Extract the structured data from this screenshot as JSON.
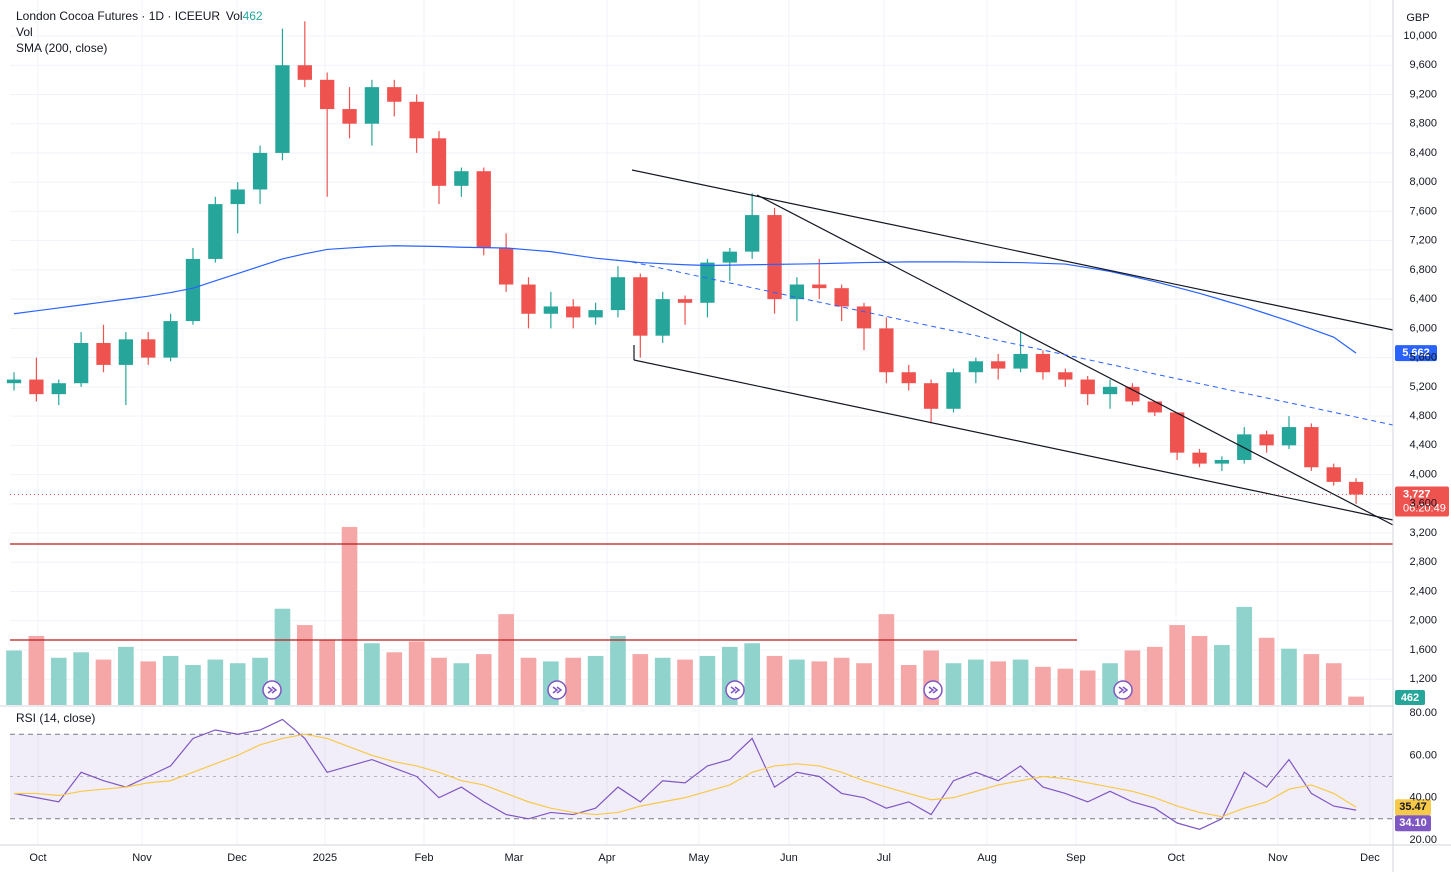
{
  "chart_data": [
    {
      "type": "candlestick",
      "title": "London Cocoa Futures · 1D · ICEEUR",
      "currency": "GBP",
      "x": [
        0,
        1,
        2,
        3,
        4,
        5,
        6,
        7,
        8,
        9,
        10,
        11,
        12,
        13,
        14,
        15,
        16,
        17,
        18,
        19,
        20,
        21,
        22,
        23,
        24,
        25,
        26,
        27,
        28,
        29,
        30,
        31,
        32,
        33,
        34,
        35,
        36,
        37,
        38,
        39,
        40,
        41,
        42,
        43,
        44,
        45,
        46,
        47,
        48,
        49,
        50,
        51,
        52,
        53,
        54,
        55,
        56,
        57,
        58,
        59,
        60
      ],
      "open": [
        5250,
        5300,
        5100,
        5250,
        5800,
        5500,
        5850,
        5600,
        6100,
        6950,
        7700,
        7900,
        8400,
        9600,
        9400,
        9000,
        8800,
        9300,
        9100,
        8600,
        7950,
        8150,
        7100,
        6600,
        6200,
        6300,
        6150,
        6250,
        6700,
        5900,
        6400,
        6350,
        6900,
        7050,
        7550,
        6400,
        6600,
        6550,
        6300,
        6000,
        5400,
        5250,
        4900,
        5400,
        5550,
        5450,
        5650,
        5400,
        5300,
        5100,
        5200,
        5000,
        4850,
        4300,
        4150,
        4200,
        4550,
        4400,
        4650,
        4100,
        3900
      ],
      "high": [
        5400,
        5600,
        5300,
        5950,
        6050,
        5950,
        5950,
        6200,
        7100,
        7800,
        8000,
        8500,
        10100,
        10200,
        9500,
        9300,
        9400,
        9400,
        9200,
        8700,
        8200,
        8200,
        7300,
        6700,
        6500,
        6400,
        6350,
        6850,
        6750,
        6500,
        6450,
        6950,
        7100,
        7850,
        7650,
        6700,
        6950,
        6600,
        6350,
        6150,
        5500,
        5300,
        5450,
        5600,
        5650,
        5950,
        5700,
        5450,
        5350,
        5300,
        5250,
        5000,
        4850,
        4350,
        4250,
        4650,
        4600,
        4800,
        4700,
        4150,
        3950
      ],
      "low": [
        5150,
        5000,
        4950,
        5200,
        5400,
        4950,
        5500,
        5550,
        6050,
        6900,
        7300,
        7700,
        8300,
        9300,
        7800,
        8600,
        8500,
        8900,
        8400,
        7700,
        7800,
        7000,
        6500,
        6000,
        6000,
        6000,
        6050,
        6150,
        5600,
        5800,
        6050,
        6150,
        6650,
        6950,
        6200,
        6100,
        6400,
        6100,
        5700,
        5250,
        5150,
        4700,
        4850,
        5250,
        5300,
        5400,
        5300,
        5200,
        4950,
        4900,
        4950,
        4800,
        4200,
        4100,
        4050,
        4150,
        4300,
        4350,
        4050,
        3850,
        3600
      ],
      "close": [
        5300,
        5100,
        5250,
        5800,
        5500,
        5850,
        5600,
        6100,
        6950,
        7700,
        7900,
        8400,
        9600,
        9400,
        9000,
        8800,
        9300,
        9100,
        8600,
        7950,
        8150,
        7100,
        6600,
        6200,
        6300,
        6150,
        6250,
        6700,
        5900,
        6400,
        6350,
        6900,
        7050,
        7550,
        6400,
        6600,
        6550,
        6300,
        6000,
        5400,
        5250,
        4900,
        5400,
        5550,
        5450,
        5650,
        5400,
        5300,
        5100,
        5200,
        5000,
        4850,
        4300,
        4150,
        4200,
        4550,
        4400,
        4650,
        4100,
        3900,
        3727
      ],
      "last_close_label": "3,727",
      "countdown": "06:20:49",
      "up_color": "#26a69a",
      "down_color": "#ef5350",
      "series": [
        {
          "name": "SMA (200, close)",
          "color": "#2962ff",
          "last_value_label": "5,662",
          "values": [
            6200,
            6240,
            6280,
            6320,
            6360,
            6400,
            6440,
            6490,
            6550,
            6650,
            6750,
            6850,
            6950,
            7020,
            7080,
            7100,
            7120,
            7130,
            7125,
            7120,
            7110,
            7105,
            7100,
            7075,
            7050,
            7005,
            6960,
            6930,
            6900,
            6885,
            6870,
            6860,
            6865,
            6870,
            6875,
            6880,
            6885,
            6893,
            6900,
            6905,
            6910,
            6910,
            6910,
            6907,
            6903,
            6900,
            6890,
            6880,
            6830,
            6780,
            6710,
            6640,
            6560,
            6480,
            6390,
            6300,
            6200,
            6100,
            5990,
            5880,
            5662
          ]
        }
      ],
      "xlim": [
        -0.18,
        61.65
      ],
      "ylim": [
        848,
        10492
      ],
      "yticks": [
        {
          "value": 1200,
          "label": "1,200"
        },
        {
          "value": 1600,
          "label": "1,600"
        },
        {
          "value": 2000,
          "label": "2,000"
        },
        {
          "value": 2400,
          "label": "2,400"
        },
        {
          "value": 2800,
          "label": "2,800"
        },
        {
          "value": 3200,
          "label": "3,200"
        },
        {
          "value": 3600,
          "label": "3,600"
        },
        {
          "value": 4000,
          "label": "4,000"
        },
        {
          "value": 4400,
          "label": "4,400"
        },
        {
          "value": 4800,
          "label": "4,800"
        },
        {
          "value": 5200,
          "label": "5,200"
        },
        {
          "value": 5600,
          "label": "5,600"
        },
        {
          "value": 6000,
          "label": "6,000"
        },
        {
          "value": 6400,
          "label": "6,400"
        },
        {
          "value": 6800,
          "label": "6,800"
        },
        {
          "value": 7200,
          "label": "7,200"
        },
        {
          "value": 7600,
          "label": "7,600"
        },
        {
          "value": 8000,
          "label": "8,000"
        },
        {
          "value": 8400,
          "label": "8,400"
        },
        {
          "value": 8800,
          "label": "8,800"
        },
        {
          "value": 9200,
          "label": "9,200"
        },
        {
          "value": 9600,
          "label": "9,600"
        },
        {
          "value": 10000,
          "label": "10,000"
        }
      ],
      "xticks": [
        {
          "value": 1.07,
          "label": "Oct"
        },
        {
          "value": 5.72,
          "label": "Nov"
        },
        {
          "value": 9.97,
          "label": "Dec"
        },
        {
          "value": 13.9,
          "label": "2025"
        },
        {
          "value": 18.33,
          "label": "Feb"
        },
        {
          "value": 22.35,
          "label": "Mar"
        },
        {
          "value": 26.51,
          "label": "Apr"
        },
        {
          "value": 30.62,
          "label": "May"
        },
        {
          "value": 34.64,
          "label": "Jun"
        },
        {
          "value": 38.89,
          "label": "Jul"
        },
        {
          "value": 43.5,
          "label": "Aug"
        },
        {
          "value": 47.47,
          "label": "Sep"
        },
        {
          "value": 51.95,
          "label": "Oct"
        },
        {
          "value": 56.5,
          "label": "Nov"
        },
        {
          "value": 60.62,
          "label": "Dec"
        }
      ],
      "grid": true
    },
    {
      "type": "volume",
      "name": "Vol",
      "up_color": "#8fd3cc",
      "down_color": "#f5a6a6",
      "ylim": [
        0,
        12000
      ],
      "values": [
        3000,
        3800,
        2600,
        2900,
        2500,
        3200,
        2400,
        2700,
        2200,
        2500,
        2300,
        2600,
        5300,
        4400,
        3600,
        9800,
        3400,
        2900,
        3500,
        2600,
        2300,
        2800,
        5000,
        2600,
        2400,
        2600,
        2700,
        3800,
        2800,
        2600,
        2500,
        2700,
        3200,
        3400,
        2700,
        2500,
        2400,
        2600,
        2300,
        5000,
        2200,
        3000,
        2300,
        2500,
        2400,
        2500,
        2100,
        2000,
        1900,
        2300,
        3000,
        3200,
        4400,
        3800,
        3300,
        5400,
        3700,
        3100,
        2800,
        2300,
        462
      ]
    },
    {
      "type": "line",
      "title": "RSI (14, close)",
      "ylim": [
        17.6,
        82.4
      ],
      "yticks": [
        {
          "value": 20,
          "label": "20.00"
        },
        {
          "value": 40,
          "label": "40.00"
        },
        {
          "value": 60,
          "label": "60.00"
        },
        {
          "value": 80,
          "label": "80.00"
        }
      ],
      "bands": [
        30,
        70
      ],
      "midline": 50,
      "band_color": "rgba(126,87,194,0.1)",
      "series": [
        {
          "color": "#7e57c2",
          "last_value_label": "34.10",
          "values": [
            42,
            40,
            38,
            52,
            48,
            45,
            50,
            55,
            68,
            72,
            70,
            72,
            77,
            68,
            52,
            55,
            58,
            54,
            50,
            40,
            45,
            38,
            32,
            30,
            33,
            32,
            35,
            45,
            38,
            48,
            47,
            55,
            58,
            68,
            45,
            52,
            50,
            42,
            40,
            35,
            38,
            32,
            48,
            52,
            48,
            55,
            45,
            42,
            38,
            43,
            38,
            35,
            28,
            25,
            30,
            52,
            45,
            58,
            42,
            36,
            34.1
          ]
        },
        {
          "color": "#f7c948",
          "last_value_label": "35.47",
          "values": [
            42,
            42,
            41,
            43,
            44,
            45,
            47,
            48,
            52,
            56,
            60,
            65,
            68,
            70,
            68,
            64,
            60,
            57,
            55,
            52,
            48,
            46,
            42,
            38,
            35,
            33,
            32,
            33,
            36,
            38,
            40,
            43,
            46,
            52,
            55,
            56,
            55,
            52,
            48,
            45,
            42,
            39,
            40,
            43,
            46,
            48,
            50,
            49,
            47,
            45,
            43,
            40,
            36,
            33,
            31,
            35,
            38,
            44,
            46,
            42,
            35.47
          ]
        }
      ]
    }
  ]
}
